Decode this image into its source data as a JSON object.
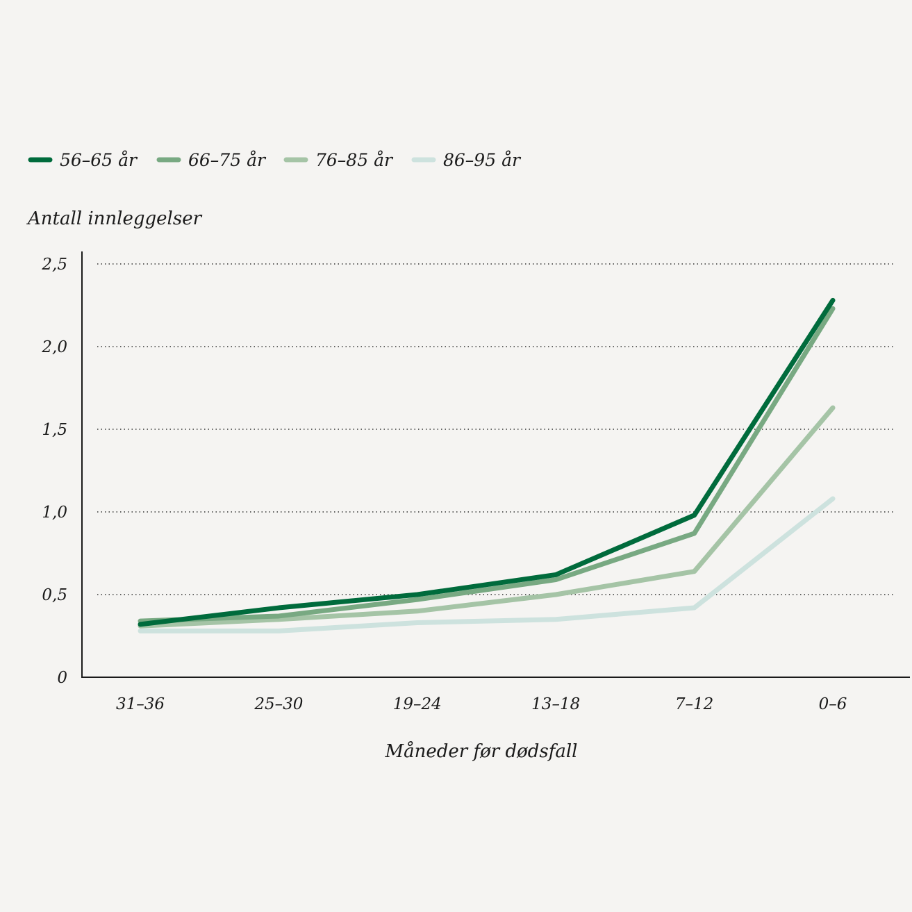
{
  "chart_data": {
    "type": "line",
    "title": "",
    "ylabel": "Antall innleggelser",
    "xlabel": "Måneder før dødsfall",
    "categories": [
      "31–36",
      "25–30",
      "19–24",
      "13–18",
      "7–12",
      "0–6"
    ],
    "ylim": [
      0,
      2.5
    ],
    "yticks": [
      0,
      0.5,
      1.0,
      1.5,
      2.0,
      2.5
    ],
    "ytick_labels": [
      "0",
      "0,5",
      "1,0",
      "1,5",
      "2,0",
      "2,5"
    ],
    "grid": "horizontal-dotted",
    "legend_position": "top-left",
    "series": [
      {
        "name": "56–65 år",
        "color": "#006b3c",
        "values": [
          0.32,
          0.42,
          0.5,
          0.62,
          0.98,
          2.28
        ]
      },
      {
        "name": "66–75 år",
        "color": "#78a982",
        "values": [
          0.34,
          0.37,
          0.47,
          0.59,
          0.87,
          2.23
        ]
      },
      {
        "name": "76–85 år",
        "color": "#a5c4a6",
        "values": [
          0.31,
          0.35,
          0.4,
          0.5,
          0.64,
          1.63
        ]
      },
      {
        "name": "86–95 år",
        "color": "#cde2de",
        "values": [
          0.28,
          0.28,
          0.33,
          0.35,
          0.42,
          1.08
        ]
      }
    ]
  }
}
